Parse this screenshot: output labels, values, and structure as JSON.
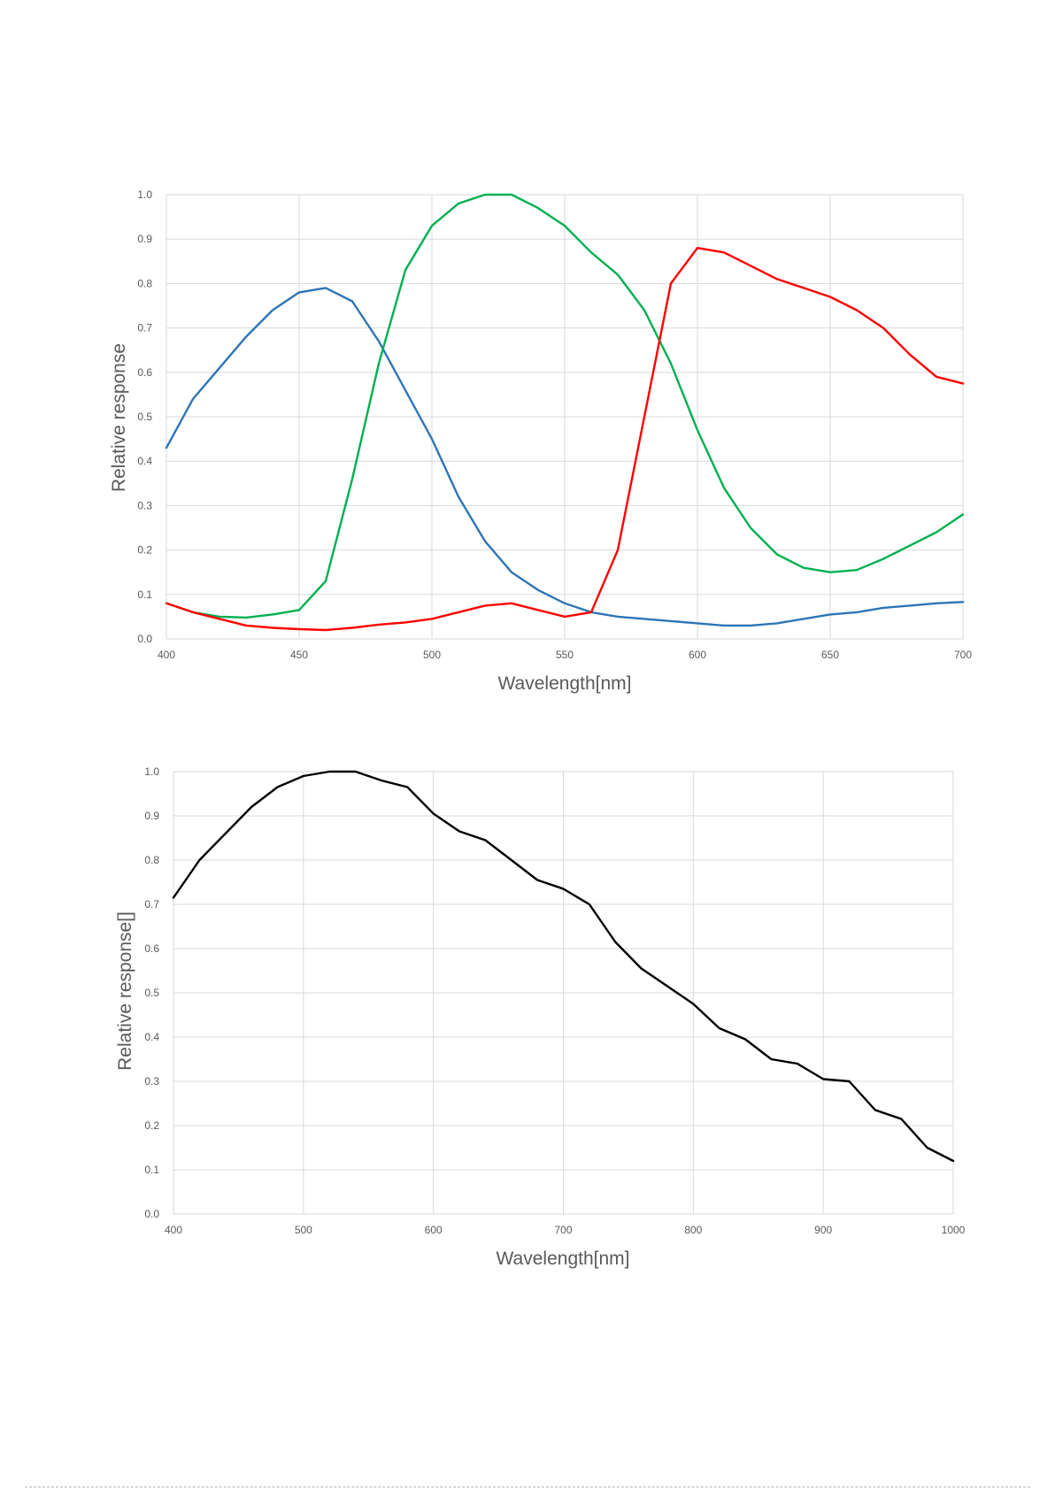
{
  "chart_data": [
    {
      "type": "line",
      "title": "",
      "xlabel": "Wavelength[nm]",
      "ylabel": "Relative response",
      "xlim": [
        400,
        700
      ],
      "ylim": [
        0,
        1.0
      ],
      "grid": true,
      "legend": "none",
      "x_ticks": [
        "400",
        "450",
        "500",
        "550",
        "600",
        "650",
        "700"
      ],
      "y_ticks": [
        "0.0",
        "0.1",
        "0.2",
        "0.3",
        "0.4",
        "0.5",
        "0.6",
        "0.7",
        "0.8",
        "0.9",
        "1.0"
      ],
      "x": [
        400,
        410,
        420,
        430,
        440,
        450,
        460,
        470,
        480,
        490,
        500,
        510,
        520,
        530,
        540,
        550,
        560,
        570,
        580,
        590,
        600,
        610,
        620,
        630,
        640,
        650,
        660,
        670,
        680,
        690,
        700
      ],
      "series": [
        {
          "color": "#2e75b6",
          "values": [
            0.43,
            0.54,
            0.61,
            0.68,
            0.74,
            0.78,
            0.79,
            0.76,
            0.67,
            0.56,
            0.45,
            0.32,
            0.22,
            0.15,
            0.11,
            0.08,
            0.06,
            0.05,
            0.045,
            0.04,
            0.035,
            0.03,
            0.03,
            0.035,
            0.045,
            0.055,
            0.06,
            0.07,
            0.075,
            0.08,
            0.083
          ]
        },
        {
          "color": "#00b050",
          "values": [
            0.08,
            0.06,
            0.05,
            0.048,
            0.055,
            0.065,
            0.13,
            0.36,
            0.62,
            0.83,
            0.93,
            0.98,
            1.0,
            1.0,
            0.97,
            0.93,
            0.87,
            0.82,
            0.74,
            0.62,
            0.47,
            0.34,
            0.25,
            0.19,
            0.16,
            0.15,
            0.155,
            0.18,
            0.21,
            0.24,
            0.28
          ]
        },
        {
          "color": "#ff0000",
          "values": [
            0.08,
            0.06,
            0.045,
            0.03,
            0.025,
            0.022,
            0.02,
            0.025,
            0.032,
            0.037,
            0.045,
            0.06,
            0.075,
            0.08,
            0.065,
            0.05,
            0.06,
            0.2,
            0.5,
            0.8,
            0.88,
            0.87,
            0.84,
            0.81,
            0.79,
            0.77,
            0.74,
            0.7,
            0.64,
            0.59,
            0.575
          ]
        }
      ]
    },
    {
      "type": "line",
      "title": "",
      "xlabel": "Wavelength[nm]",
      "ylabel": "Relative response[]",
      "xlim": [
        400,
        1000
      ],
      "ylim": [
        0,
        1.0
      ],
      "grid": true,
      "legend": "none",
      "x_ticks": [
        "400",
        "500",
        "600",
        "700",
        "800",
        "900",
        "1000"
      ],
      "y_ticks": [
        "0.0",
        "0.1",
        "0.2",
        "0.3",
        "0.4",
        "0.5",
        "0.6",
        "0.7",
        "0.8",
        "0.9",
        "1.0"
      ],
      "x": [
        400,
        420,
        440,
        460,
        480,
        500,
        520,
        540,
        560,
        580,
        600,
        620,
        640,
        660,
        680,
        700,
        720,
        740,
        760,
        780,
        800,
        820,
        840,
        860,
        880,
        900,
        920,
        940,
        960,
        980,
        1000
      ],
      "series": [
        {
          "color": "#000000",
          "values": [
            0.715,
            0.8,
            0.86,
            0.92,
            0.965,
            0.99,
            1.0,
            1.0,
            0.98,
            0.965,
            0.905,
            0.865,
            0.845,
            0.8,
            0.755,
            0.735,
            0.7,
            0.615,
            0.555,
            0.515,
            0.475,
            0.42,
            0.395,
            0.35,
            0.34,
            0.305,
            0.3,
            0.235,
            0.215,
            0.15,
            0.12
          ]
        }
      ]
    }
  ]
}
